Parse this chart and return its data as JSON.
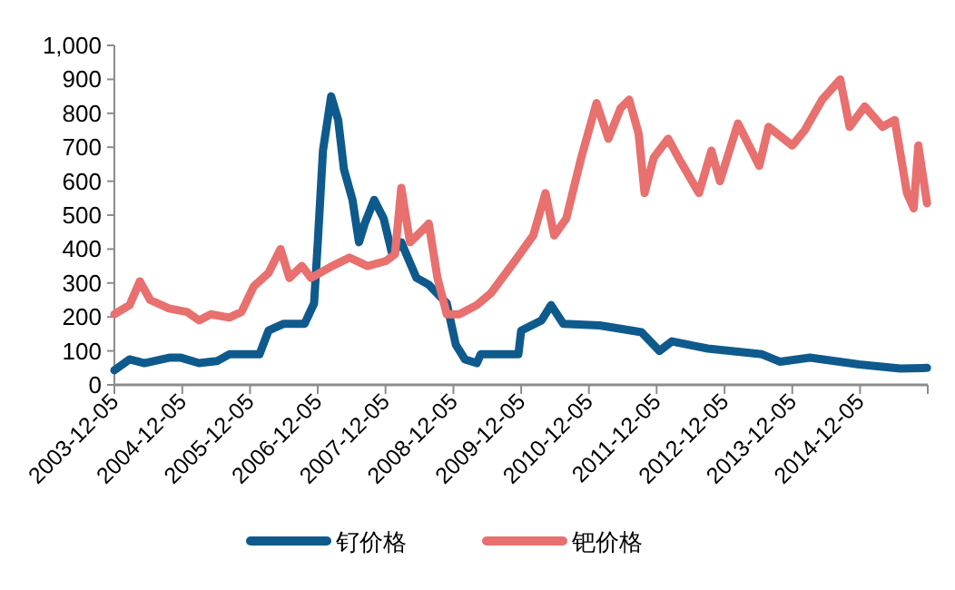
{
  "chart_data": {
    "type": "line",
    "xlim": [
      "2003-12-05",
      "2015-12-05"
    ],
    "xticks": [
      "2003-12-05",
      "2004-12-05",
      "2005-12-05",
      "2006-12-05",
      "2007-12-05",
      "2008-12-05",
      "2009-12-05",
      "2010-12-05",
      "2011-12-05",
      "2012-12-05",
      "2013-12-05",
      "2014-12-05",
      {
        "value": "2015-12-05",
        "label": null
      }
    ],
    "ylim": [
      0,
      1000
    ],
    "yticks": [
      0,
      100,
      200,
      300,
      400,
      500,
      600,
      700,
      800,
      900,
      {
        "value": 1000,
        "label": "1,000"
      }
    ],
    "grid": false,
    "legend": "bottom",
    "marker": "none",
    "line_style": "solid",
    "series": [
      {
        "name": "钌价格",
        "color": "#0f5a8c",
        "x": [
          "2003-12-05",
          "2004-02-25",
          "2004-05-15",
          "2004-09-25",
          "2004-11-28",
          "2005-03-05",
          "2005-06-10",
          "2005-08-15",
          "2006-01-25",
          "2006-03-15",
          "2006-06-05",
          "2006-09-25",
          "2006-11-15",
          "2006-12-05",
          "2007-01-02",
          "2007-02-15",
          "2007-03-25",
          "2007-04-25",
          "2007-06-10",
          "2007-07-15",
          "2007-08-15",
          "2007-10-05",
          "2007-11-25",
          "2008-01-10",
          "2008-02-28",
          "2008-05-20",
          "2008-07-25",
          "2008-10-30",
          "2008-12-18",
          "2009-02-05",
          "2009-04-10",
          "2009-05-01",
          "2009-11-20",
          "2009-12-05",
          "2010-03-25",
          "2010-05-15",
          "2010-07-20",
          "2011-02-01",
          "2011-09-15",
          "2011-12-20",
          "2012-02-25",
          "2012-09-05",
          "2013-06-25",
          "2013-10-01",
          "2014-03-10",
          "2014-11-30",
          "2015-07-10",
          "2015-12-01"
        ],
        "values": [
          43,
          75,
          64,
          80,
          80,
          64,
          70,
          90,
          90,
          160,
          180,
          180,
          240,
          420,
          690,
          850,
          780,
          635,
          545,
          420,
          475,
          545,
          490,
          385,
          420,
          315,
          295,
          240,
          118,
          75,
          64,
          90,
          90,
          160,
          190,
          235,
          180,
          175,
          155,
          100,
          128,
          107,
          90,
          68,
          80,
          60,
          48,
          50
        ]
      },
      {
        "name": "钯价格",
        "color": "#e8706e",
        "x": [
          "2003-12-05",
          "2004-02-25",
          "2004-04-20",
          "2004-06-15",
          "2004-09-25",
          "2004-12-30",
          "2005-03-05",
          "2005-05-08",
          "2005-08-15",
          "2005-10-20",
          "2005-12-25",
          "2006-03-15",
          "2006-05-18",
          "2006-07-05",
          "2006-09-10",
          "2006-10-30",
          "2007-02-20",
          "2007-05-25",
          "2007-08-30",
          "2007-12-08",
          "2008-01-25",
          "2008-02-28",
          "2008-04-15",
          "2008-06-20",
          "2008-07-25",
          "2008-09-10",
          "2008-10-30",
          "2009-01-05",
          "2009-04-10",
          "2009-06-25",
          "2009-11-01",
          "2010-02-08",
          "2010-04-15",
          "2010-06-01",
          "2010-08-05",
          "2010-10-25",
          "2011-01-15",
          "2011-03-20",
          "2011-05-25",
          "2011-07-10",
          "2011-08-30",
          "2011-10-01",
          "2011-11-20",
          "2012-02-05",
          "2012-04-15",
          "2012-07-20",
          "2012-09-25",
          "2012-11-10",
          "2013-02-15",
          "2013-06-10",
          "2013-07-30",
          "2013-12-05",
          "2014-02-10",
          "2014-05-15",
          "2014-08-20",
          "2014-10-10",
          "2014-12-30",
          "2015-04-05",
          "2015-06-10",
          "2015-08-15",
          "2015-09-20",
          "2015-10-15",
          "2015-12-01"
        ],
        "values": [
          208,
          235,
          305,
          250,
          225,
          215,
          190,
          208,
          198,
          215,
          290,
          330,
          400,
          315,
          350,
          315,
          350,
          375,
          350,
          365,
          385,
          580,
          420,
          455,
          475,
          315,
          208,
          208,
          235,
          270,
          365,
          440,
          565,
          440,
          490,
          670,
          830,
          725,
          815,
          840,
          740,
          565,
          670,
          725,
          655,
          565,
          690,
          600,
          770,
          645,
          760,
          705,
          750,
          840,
          900,
          760,
          820,
          760,
          780,
          565,
          520,
          705,
          535
        ]
      }
    ]
  }
}
